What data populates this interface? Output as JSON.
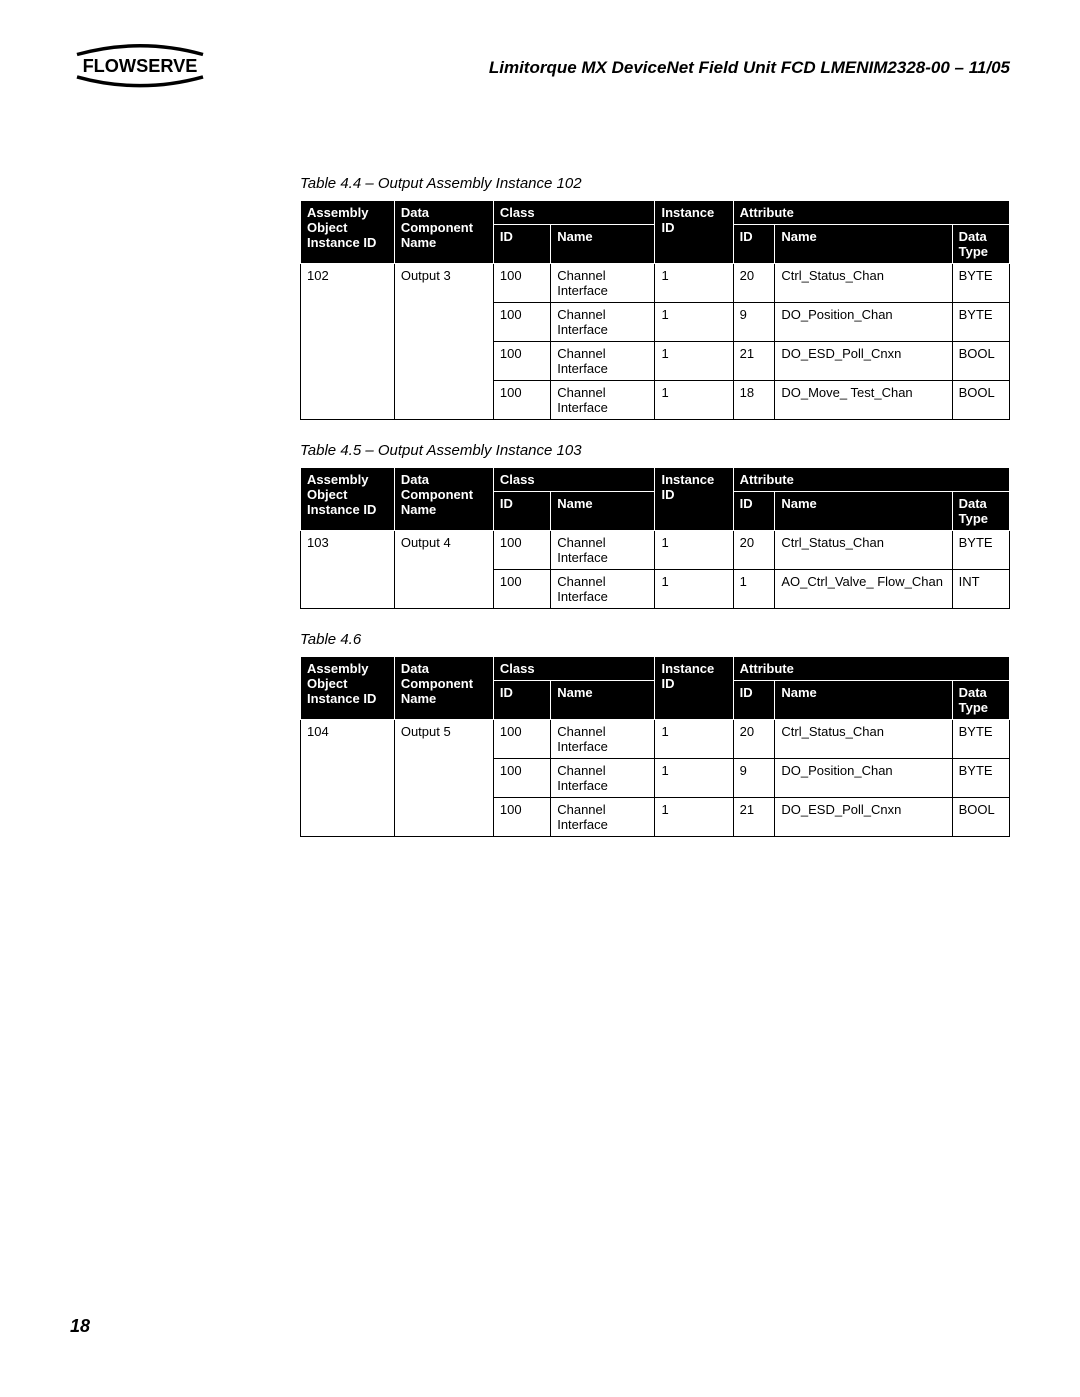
{
  "header": {
    "logo_text": "FLOWSERVE",
    "doc_title": "Limitorque MX DeviceNet Field Unit    FCD LMENIM2328-00 – 11/05"
  },
  "page_number": "18",
  "column_labels": {
    "assembly_l1": "Assembly",
    "assembly_l2": "Object",
    "assembly_l3": "Instance ID",
    "dcn_l1": "Data",
    "dcn_l2": "Component",
    "dcn_l3": "Name",
    "class": "Class",
    "class_id": "ID",
    "class_name": "Name",
    "instance_l1": "Instance",
    "instance_id": "ID",
    "attribute": "Attribute",
    "attr_id": "ID",
    "attr_name": "Name",
    "dtype_l1": "Data",
    "dtype_l2": "Type"
  },
  "tables": [
    {
      "caption": "Table 4.4 – Output Assembly Instance 102",
      "assembly_id": "102",
      "component": "Output 3",
      "rows": [
        {
          "class_id": "100",
          "class_name": "Channel Interface",
          "inst_id": "1",
          "attr_id": "20",
          "attr_name": "Ctrl_Status_Chan",
          "data_type": "BYTE"
        },
        {
          "class_id": "100",
          "class_name": "Channel Interface",
          "inst_id": "1",
          "attr_id": "9",
          "attr_name": "DO_Position_Chan",
          "data_type": "BYTE"
        },
        {
          "class_id": "100",
          "class_name": "Channel Interface",
          "inst_id": "1",
          "attr_id": "21",
          "attr_name": "DO_ESD_Poll_Cnxn",
          "data_type": "BOOL"
        },
        {
          "class_id": "100",
          "class_name": "Channel Interface",
          "inst_id": "1",
          "attr_id": "18",
          "attr_name": "DO_Move_ Test_Chan",
          "data_type": "BOOL"
        }
      ]
    },
    {
      "caption": "Table 4.5 – Output Assembly Instance 103",
      "assembly_id": "103",
      "component": "Output 4",
      "rows": [
        {
          "class_id": "100",
          "class_name": "Channel Interface",
          "inst_id": "1",
          "attr_id": "20",
          "attr_name": "Ctrl_Status_Chan",
          "data_type": "BYTE"
        },
        {
          "class_id": "100",
          "class_name": "Channel Interface",
          "inst_id": "1",
          "attr_id": "1",
          "attr_name": "AO_Ctrl_Valve_ Flow_Chan",
          "data_type": "INT"
        }
      ]
    },
    {
      "caption": "Table 4.6",
      "assembly_id": "104",
      "component": "Output 5",
      "rows": [
        {
          "class_id": "100",
          "class_name": "Channel Interface",
          "inst_id": "1",
          "attr_id": "20",
          "attr_name": "Ctrl_Status_Chan",
          "data_type": "BYTE"
        },
        {
          "class_id": "100",
          "class_name": "Channel Interface",
          "inst_id": "1",
          "attr_id": "9",
          "attr_name": "DO_Position_Chan",
          "data_type": "BYTE"
        },
        {
          "class_id": "100",
          "class_name": "Channel Interface",
          "inst_id": "1",
          "attr_id": "21",
          "attr_name": "DO_ESD_Poll_Cnxn",
          "data_type": "BOOL"
        }
      ]
    }
  ]
}
